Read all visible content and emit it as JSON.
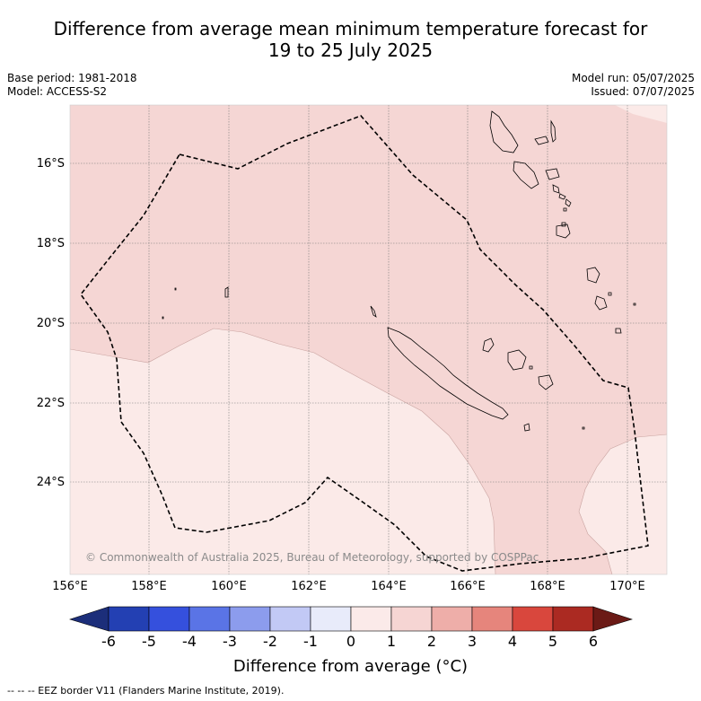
{
  "title_line1": "Difference from average mean minimum temperature forecast for",
  "title_line2": "19 to 25 July 2025",
  "base_period": "Base period: 1981-2018",
  "model": "Model: ACCESS-S2",
  "model_run": "Model run: 05/07/2025",
  "issued": "Issued: 07/07/2025",
  "latitude_labels": [
    "16°S",
    "18°S",
    "20°S",
    "22°S",
    "24°S"
  ],
  "longitude_labels": [
    "156°E",
    "158°E",
    "160°E",
    "162°E",
    "164°E",
    "166°E",
    "168°E",
    "170°E"
  ],
  "copyright": "© Commonwealth of Australia 2025, Bureau of Meteorology, supported by COSPPac",
  "colorbar": {
    "ticks": [
      "-6",
      "-5",
      "-4",
      "-3",
      "-2",
      "-1",
      "0",
      "1",
      "2",
      "3",
      "4",
      "5",
      "6"
    ],
    "label": "Difference from average (°C)",
    "colors": [
      "#1c2e7a",
      "#2340b3",
      "#3550dd",
      "#5a74e6",
      "#8c9ced",
      "#c2c9f5",
      "#e8ebfa",
      "#fbeae9",
      "#f6d5d3",
      "#eeaea9",
      "#e6857c",
      "#d9473d",
      "#ab2a22",
      "#6b1a16"
    ]
  },
  "footnote": "--  --  -- EEZ border V11 (Flanders Marine Institute, 2019).",
  "map_fills": {
    "band_1_to_2": "#f5d6d4",
    "band_0_to_1": "#fbeae8"
  }
}
